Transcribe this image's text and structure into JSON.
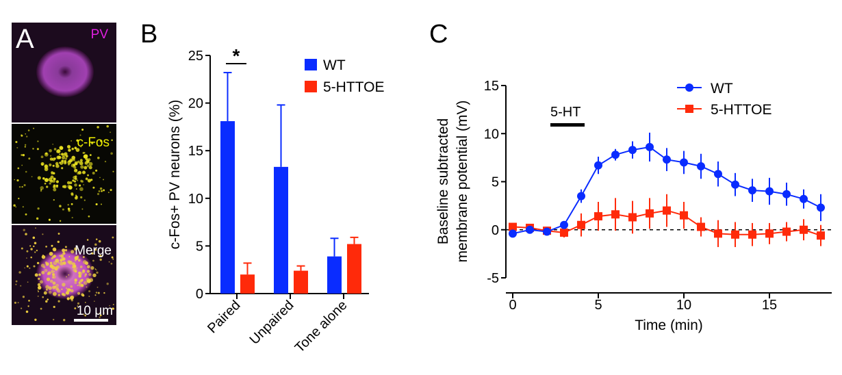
{
  "panel_a": {
    "label": "A",
    "images": [
      {
        "label": "PV",
        "label_color": "#e020e0"
      },
      {
        "label": "c-Fos",
        "label_color": "#f0f000"
      },
      {
        "label": "Merge",
        "label_color": "#ffffff"
      }
    ],
    "scale_bar": "10 μm"
  },
  "chart_data": [
    {
      "panel": "B",
      "type": "bar",
      "ylabel": "c-Fos+ PV neurons (%)",
      "ylim": [
        0,
        25
      ],
      "yticks": [
        "0",
        "5",
        "10",
        "15",
        "20",
        "25"
      ],
      "categories": [
        "Paired",
        "Unpaired",
        "Tone alone"
      ],
      "series": [
        {
          "name": "WT",
          "color": "#0a2cff",
          "values": [
            18.1,
            13.3,
            3.9
          ],
          "error": [
            5.1,
            6.5,
            1.9
          ]
        },
        {
          "name": "5-HTTOE",
          "color": "#ff2a0a",
          "values": [
            2.0,
            2.4,
            5.2
          ],
          "error": [
            1.2,
            0.5,
            0.7
          ]
        }
      ],
      "significance": {
        "group": "Paired",
        "label": "*"
      },
      "legend": "top-right"
    },
    {
      "panel": "C",
      "type": "line",
      "xlabel": "Time (min)",
      "ylabel": [
        "Baseline subtracted",
        "membrane potential (mV)"
      ],
      "xlim": [
        0,
        18
      ],
      "ylim": [
        -5,
        15
      ],
      "xticks": [
        "0",
        "5",
        "10",
        "15"
      ],
      "yticks": [
        "-5",
        "0",
        "5",
        "10",
        "15"
      ],
      "x": [
        0,
        1,
        2,
        3,
        4,
        5,
        6,
        7,
        8,
        9,
        10,
        11,
        12,
        13,
        14,
        15,
        16,
        17,
        18
      ],
      "series": [
        {
          "name": "WT",
          "color": "#0a2cff",
          "marker": "circle",
          "values": [
            -0.4,
            0.0,
            -0.2,
            0.5,
            3.5,
            6.7,
            7.8,
            8.3,
            8.6,
            7.3,
            7.0,
            6.6,
            5.8,
            4.7,
            4.1,
            4.0,
            3.7,
            3.2,
            2.3
          ],
          "error": [
            0.3,
            0.2,
            0.2,
            0.3,
            0.7,
            0.9,
            0.6,
            0.9,
            1.5,
            1.2,
            1.2,
            1.3,
            1.3,
            1.2,
            1.2,
            1.4,
            1.2,
            1.0,
            1.4
          ]
        },
        {
          "name": "5-HTTOE",
          "color": "#ff2a0a",
          "marker": "square",
          "values": [
            0.3,
            0.2,
            -0.1,
            -0.3,
            0.5,
            1.4,
            1.6,
            1.3,
            1.7,
            2.0,
            1.5,
            0.3,
            -0.4,
            -0.5,
            -0.5,
            -0.4,
            -0.2,
            0.0,
            -0.6
          ],
          "error": [
            0.4,
            0.2,
            0.3,
            0.5,
            1.2,
            1.5,
            1.7,
            1.7,
            1.6,
            1.7,
            1.4,
            1.0,
            1.4,
            1.3,
            1.2,
            1.1,
            1.0,
            1.1,
            1.1
          ]
        }
      ],
      "annotation": {
        "label": "5-HT",
        "start": 2.2,
        "end": 4.2
      },
      "baseline": 0,
      "legend": "top-right"
    }
  ]
}
